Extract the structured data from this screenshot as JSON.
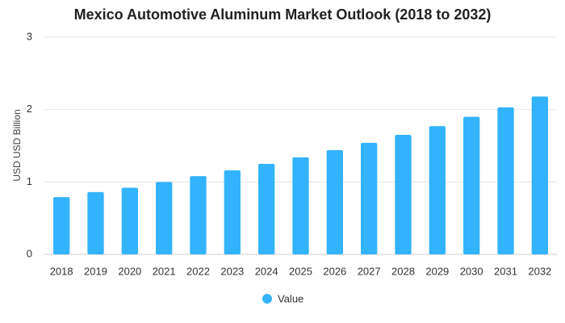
{
  "chart_data": {
    "type": "bar",
    "title": "Mexico Automotive Aluminum Market Outlook (2018 to 2032)",
    "xlabel": "",
    "ylabel": "USD USD Billion",
    "ylim": [
      0,
      3
    ],
    "yticks": [
      0,
      1,
      2,
      3
    ],
    "grid": true,
    "legend_position": "bottom",
    "categories": [
      "2018",
      "2019",
      "2020",
      "2021",
      "2022",
      "2023",
      "2024",
      "2025",
      "2026",
      "2027",
      "2028",
      "2029",
      "2030",
      "2031",
      "2032"
    ],
    "series": [
      {
        "name": "Value",
        "color": "#33b3fb",
        "values": [
          0.79,
          0.86,
          0.92,
          1.0,
          1.08,
          1.16,
          1.25,
          1.34,
          1.44,
          1.54,
          1.65,
          1.77,
          1.9,
          2.03,
          2.18
        ]
      }
    ]
  }
}
